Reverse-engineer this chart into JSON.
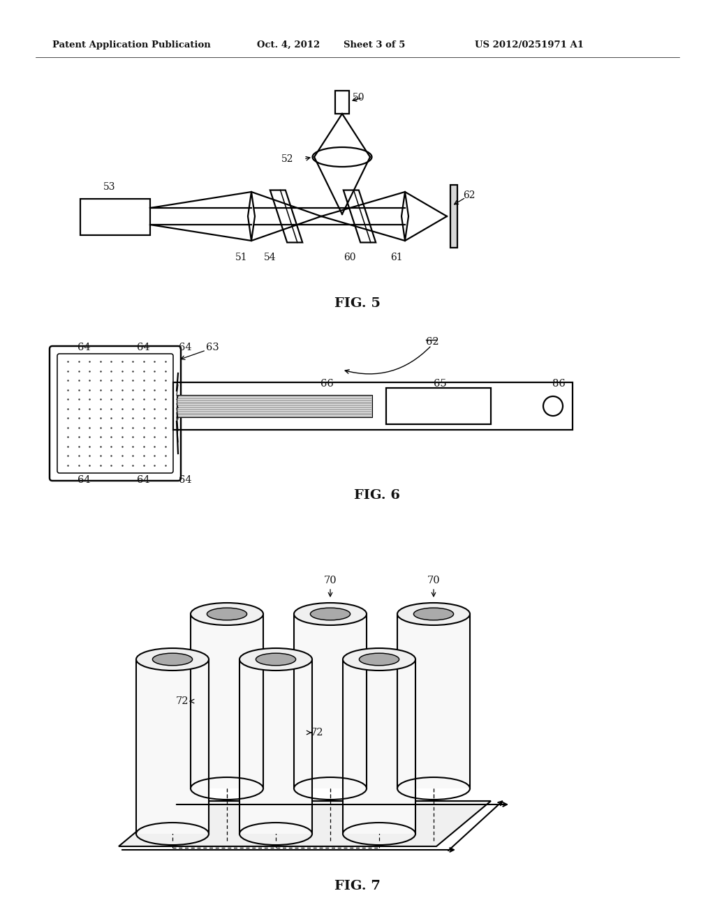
{
  "bg_color": "#ffffff",
  "line_color": "#000000",
  "header_text1": "Patent Application Publication",
  "header_text2": "Oct. 4, 2012",
  "header_text3": "Sheet 3 of 5",
  "header_text4": "US 2012/0251971 A1",
  "fig5_label": "FIG. 5",
  "fig6_label": "FIG. 6",
  "fig7_label": "FIG. 7"
}
